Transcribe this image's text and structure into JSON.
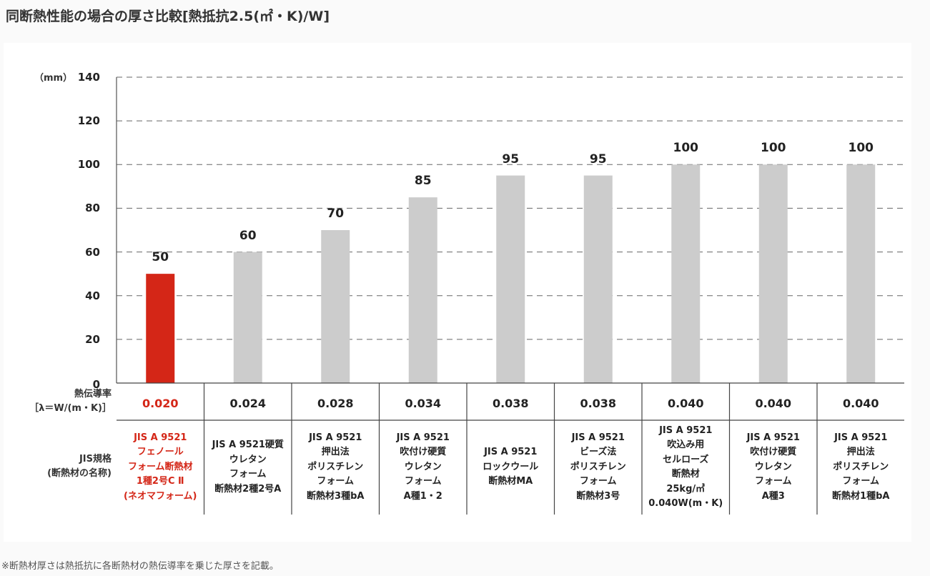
{
  "title": "同断熱性能の場合の厚さ比較[熱抵抗2.5(㎡・K)/W]",
  "footnote": "※断熱材厚さは熱抵抗に各断熱材の熱伝導率を乗じた厚さを記載。",
  "colors": {
    "highlight": "#d42617",
    "bar": "#cccccc",
    "grid": "#666666"
  },
  "chart_data": {
    "type": "bar",
    "ylabel": "（mm）",
    "ylim": [
      0,
      140
    ],
    "yticks": [
      "0",
      "20",
      "40",
      "60",
      "80",
      "100",
      "120",
      "140"
    ],
    "grid": true,
    "values": [
      50,
      60,
      70,
      85,
      95,
      95,
      100,
      100,
      100
    ],
    "value_labels": [
      "50",
      "60",
      "70",
      "85",
      "95",
      "95",
      "100",
      "100",
      "100"
    ],
    "highlight_index": 0,
    "row_headers": {
      "conductivity": "熱伝導率\n［λ＝W/(m・K)］",
      "jis": "JIS規格\n(断熱材の名称)"
    },
    "conductivity": [
      "0.020",
      "0.024",
      "0.028",
      "0.034",
      "0.038",
      "0.038",
      "0.040",
      "0.040",
      "0.040"
    ],
    "categories": [
      "JIS A 9521\nフェノール\nフォーム断熱材\n1種2号C Ⅱ\n(ネオマフォーム)",
      "JIS A 9521硬質\nウレタン\nフォーム\n断熱材2種2号A",
      "JIS A 9521\n押出法\nポリスチレン\nフォーム\n断熱材3種bA",
      "JIS A 9521\n吹付け硬質\nウレタン\nフォーム\nA種1・2",
      "JIS A 9521\nロックウール\n断熱材MA",
      "JIS A 9521\nビーズ法\nポリスチレン\nフォーム\n断熱材3号",
      "JIS A 9521\n吹込み用\nセルローズ\n断熱材\n25kg/㎥\n0.040W(m・K)",
      "JIS A 9521\n吹付け硬質\nウレタン\nフォーム\nA種3",
      "JIS A 9521\n押出法\nポリスチレン\nフォーム\n断熱材1種bA"
    ]
  }
}
